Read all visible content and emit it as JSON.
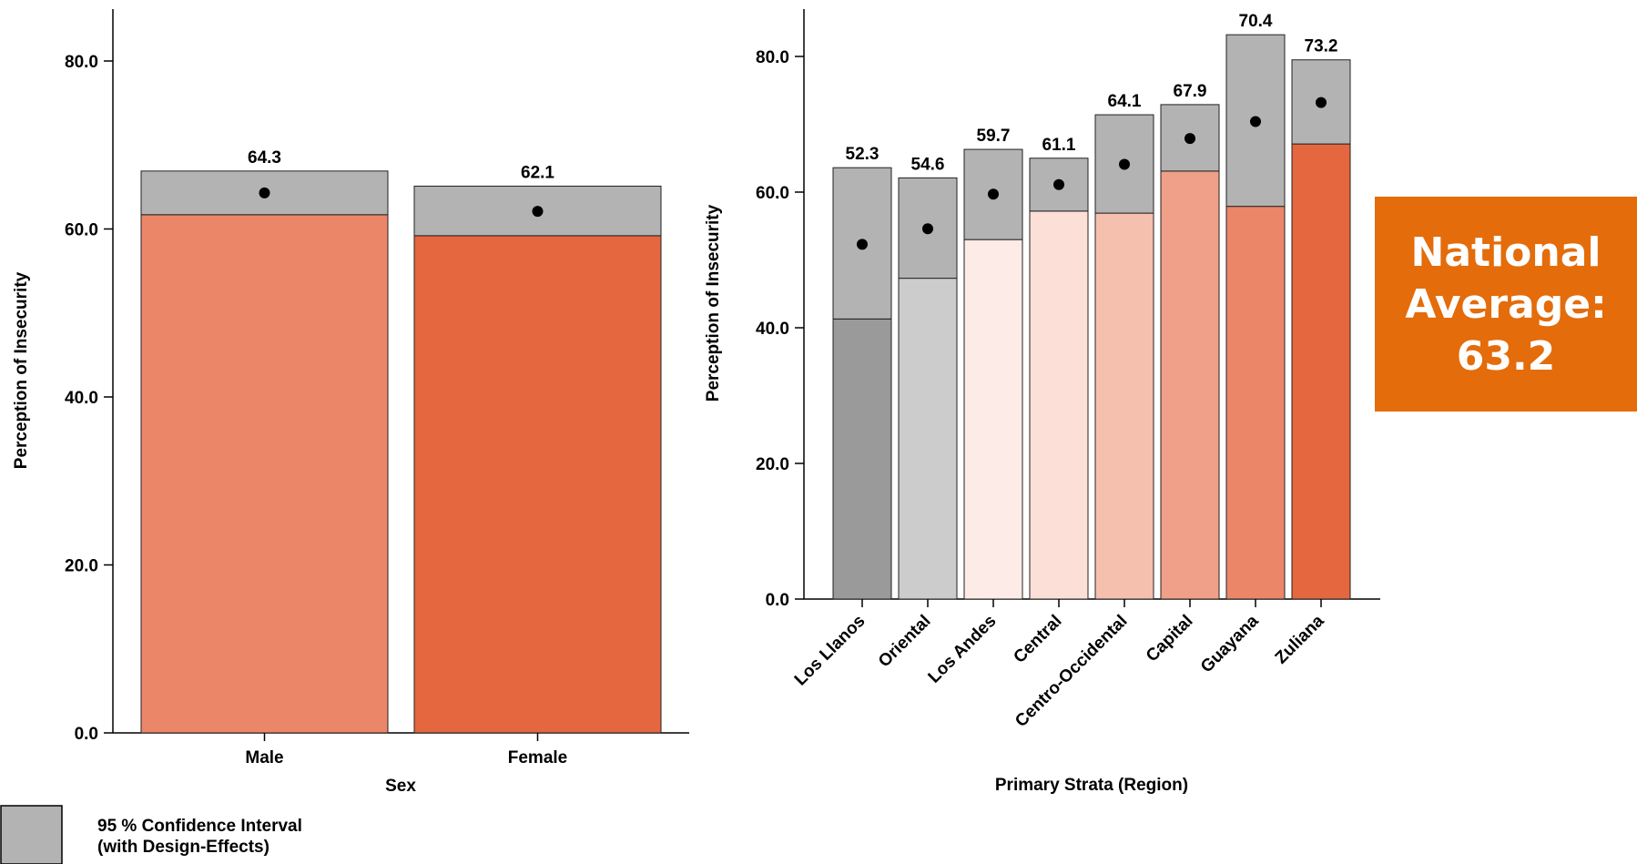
{
  "chart_data": [
    {
      "type": "bar",
      "categories": [
        "Male",
        "Female"
      ],
      "values": [
        64.3,
        62.1
      ],
      "ci": [
        [
          61.7,
          66.9
        ],
        [
          59.2,
          65.1
        ]
      ],
      "value_labels": [
        "64.3",
        "62.1"
      ],
      "colors": [
        "#ec8669",
        "#e5673f"
      ],
      "xlabel": "Sex",
      "ylabel": "Perception of Insecurity",
      "ylim": [
        0,
        86
      ],
      "yticks": [
        "0.0",
        "20.0",
        "40.0",
        "60.0",
        "80.0"
      ],
      "grid": false
    },
    {
      "type": "bar",
      "categories": [
        "Los Llanos",
        "Oriental",
        "Los Andes",
        "Central",
        "Centro-Occidental",
        "Capital",
        "Guayana",
        "Zuliana"
      ],
      "values": [
        52.3,
        54.6,
        59.7,
        61.1,
        64.1,
        67.9,
        70.4,
        73.2
      ],
      "ci": [
        [
          41.3,
          63.6
        ],
        [
          47.3,
          62.1
        ],
        [
          53.0,
          66.3
        ],
        [
          57.2,
          65.0
        ],
        [
          56.9,
          71.4
        ],
        [
          63.1,
          72.9
        ],
        [
          57.9,
          83.2
        ],
        [
          67.1,
          79.5
        ]
      ],
      "value_labels": [
        "52.3",
        "54.6",
        "59.7",
        "61.1",
        "64.1",
        "67.9",
        "70.4",
        "73.2"
      ],
      "colors": [
        "#9a9a9a",
        "#cccccc",
        "#fcebe6",
        "#fce0d7",
        "#f5c0ae",
        "#f0a088",
        "#ec8669",
        "#e5673f"
      ],
      "xlabel": "Primary Strata (Region)",
      "ylabel": "Perception of Insecurity",
      "ylim": [
        0,
        87
      ],
      "yticks": [
        "0.0",
        "20.0",
        "40.0",
        "60.0",
        "80.0"
      ],
      "grid": false
    }
  ],
  "legend": {
    "label_line1": "95 % Confidence Interval",
    "label_line2": "(with Design-Effects)",
    "ci_color": "#b3b3b3"
  },
  "national_average": {
    "line1": "National",
    "line2": "Average:",
    "line3": "63.2",
    "color": "#e46c0a"
  }
}
